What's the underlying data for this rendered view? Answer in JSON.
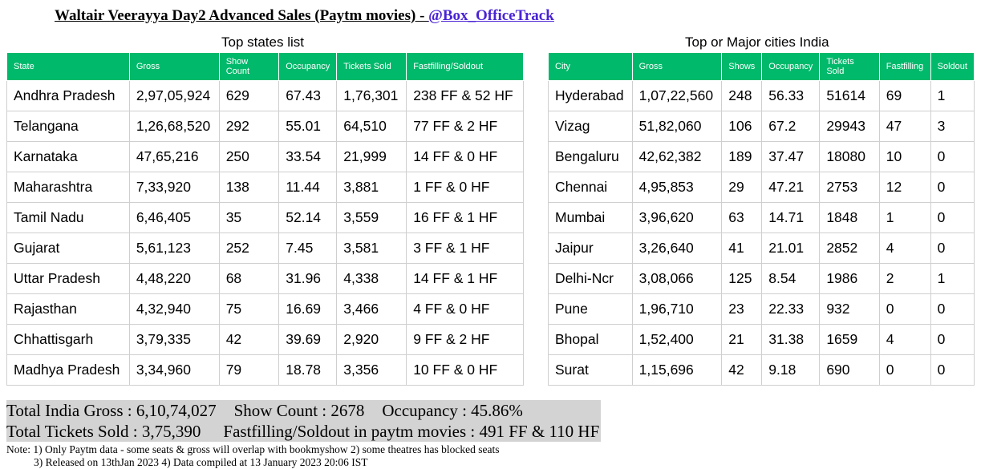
{
  "title": {
    "text": "Waltair Veerayya Day2 Advanced Sales (Paytm movies) - ",
    "handle": "@Box_OfficeTrack"
  },
  "states": {
    "caption": "Top states list",
    "headers": [
      "State",
      "Gross",
      "Show Count",
      "Occupancy",
      "Tickets Sold",
      "Fastfilling/Soldout"
    ],
    "rows": [
      [
        "Andhra Pradesh",
        "2,97,05,924",
        "629",
        "67.43",
        "1,76,301",
        "238 FF & 52 HF"
      ],
      [
        "Telangana",
        "1,26,68,520",
        "292",
        "55.01",
        "64,510",
        "77 FF & 2 HF"
      ],
      [
        "Karnataka",
        "47,65,216",
        "250",
        "33.54",
        "21,999",
        "14 FF & 0 HF"
      ],
      [
        "Maharashtra",
        "7,33,920",
        "138",
        "11.44",
        "3,881",
        "1 FF & 0 HF"
      ],
      [
        "Tamil Nadu",
        "6,46,405",
        "35",
        "52.14",
        "3,559",
        "16 FF & 1 HF"
      ],
      [
        "Gujarat",
        "5,61,123",
        "252",
        "7.45",
        "3,581",
        "3 FF & 1 HF"
      ],
      [
        "Uttar Pradesh",
        "4,48,220",
        "68",
        "31.96",
        "4,338",
        "14 FF & 1 HF"
      ],
      [
        "Rajasthan",
        "4,32,940",
        "75",
        "16.69",
        "3,466",
        "4 FF & 0 HF"
      ],
      [
        "Chhattisgarh",
        "3,79,335",
        "42",
        "39.69",
        "2,920",
        "9 FF & 2 HF"
      ],
      [
        "Madhya Pradesh",
        "3,34,960",
        "79",
        "18.78",
        "3,356",
        "10 FF & 0 HF"
      ]
    ]
  },
  "cities": {
    "caption": "Top or Major cities India",
    "headers": [
      "City",
      "Gross",
      "Shows",
      "Occupancy",
      "Tickets Sold",
      "Fastfilling",
      "Soldout"
    ],
    "rows": [
      [
        "Hyderabad",
        "1,07,22,560",
        "248",
        "56.33",
        "51614",
        "69",
        "1"
      ],
      [
        "Vizag",
        "51,82,060",
        "106",
        "67.2",
        "29943",
        "47",
        "3"
      ],
      [
        "Bengaluru",
        "42,62,382",
        "189",
        "37.47",
        "18080",
        "10",
        "0"
      ],
      [
        "Chennai",
        "4,95,853",
        "29",
        "47.21",
        "2753",
        "12",
        "0"
      ],
      [
        "Mumbai",
        "3,96,620",
        "63",
        "14.71",
        "1848",
        "1",
        "0"
      ],
      [
        "Jaipur",
        "3,26,640",
        "41",
        "21.01",
        "2852",
        "4",
        "0"
      ],
      [
        "Delhi-Ncr",
        "3,08,066",
        "125",
        "8.54",
        "1986",
        "2",
        "1"
      ],
      [
        "Pune",
        "1,96,710",
        "23",
        "22.33",
        "932",
        "0",
        "0"
      ],
      [
        "Bhopal",
        "1,52,400",
        "21",
        "31.38",
        "1659",
        "4",
        "0"
      ],
      [
        "Surat",
        "1,15,696",
        "42",
        "9.18",
        "690",
        "0",
        "0"
      ]
    ]
  },
  "summary": {
    "gross": "Total India Gross : 6,10,74,027",
    "shows": "Show Count : 2678",
    "occupancy": "Occupancy : 45.86%",
    "tickets": "Total Tickets Sold : 3,75,390",
    "fastfilling": "Fastfilling/Soldout in paytm movies : 491 FF & 110 HF"
  },
  "notes": {
    "line1": "Note: 1) Only Paytm data - some seats & gross will overlap with bookmyshow   2) some theatres has blocked seats",
    "line2": "3) Released on 13thJan 2023 4) Data compiled at 13 January 2023 20:06 IST"
  }
}
